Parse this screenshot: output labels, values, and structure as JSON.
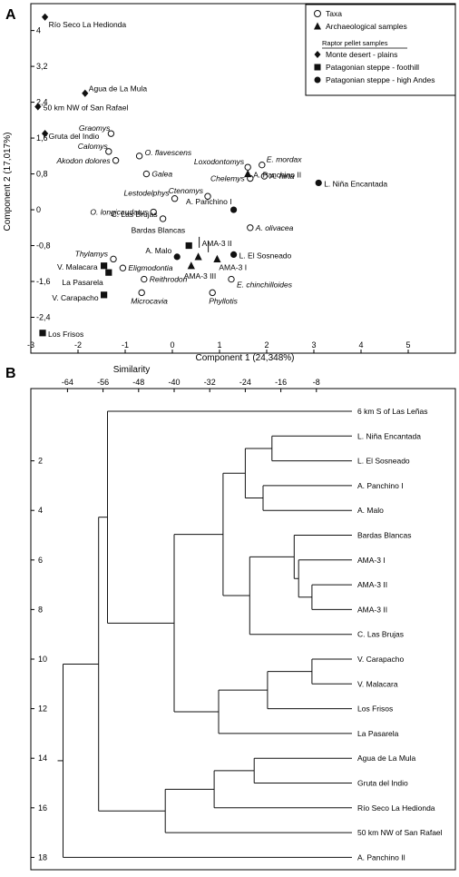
{
  "chart_data": [
    {
      "panel_label": "A",
      "type": "scatter",
      "xlabel": "Component 1 (24,348%)",
      "ylabel": "Component 2 (17,017%)",
      "xlim": [
        -3,
        6
      ],
      "ylim": [
        -3.2,
        4.6
      ],
      "x_ticks": [
        -3,
        -2,
        -1,
        0,
        1,
        2,
        3,
        4,
        5
      ],
      "y_ticks": [
        -2.4,
        -1.6,
        -0.8,
        0,
        0.8,
        1.6,
        2.4,
        3.2,
        4
      ],
      "x_tick_labels": [
        "-3",
        "-2",
        "-1",
        "0",
        "1",
        "2",
        "3",
        "4",
        "5"
      ],
      "y_tick_labels": [
        "-2,4",
        "-1,6",
        "-0,8",
        "0",
        "0,8",
        "1,6",
        "2,4",
        "3,2",
        "4"
      ],
      "legend": {
        "position": "top-right",
        "entries": [
          {
            "symbol": "open-circle",
            "label": "Taxa"
          },
          {
            "symbol": "triangle",
            "label": "Archaeological samples"
          },
          {
            "symbol": "none",
            "label": "Raptor pellet samples",
            "underline": true
          },
          {
            "symbol": "diamond",
            "label": "Monte desert - plains"
          },
          {
            "symbol": "square",
            "label": "Patagonian steppe - foothill"
          },
          {
            "symbol": "circle",
            "label": "Patagonian steppe - high Andes"
          }
        ]
      },
      "series": [
        {
          "name": "Taxa",
          "symbol": "open-circle",
          "points": [
            {
              "label": "Graomys",
              "italic": true,
              "x": -1.3,
              "y": 1.7
            },
            {
              "label": "Calomys",
              "italic": true,
              "x": -1.35,
              "y": 1.3
            },
            {
              "label": "O. flavescens",
              "italic": true,
              "x": -0.7,
              "y": 1.2
            },
            {
              "label": "Akodon dolores",
              "italic": true,
              "x": -1.2,
              "y": 1.1
            },
            {
              "label": "Galea",
              "italic": true,
              "x": -0.55,
              "y": 0.8
            },
            {
              "label": "Loxodontomys",
              "italic": true,
              "x": 1.6,
              "y": 0.95
            },
            {
              "label": "E. mordax",
              "italic": true,
              "x": 1.9,
              "y": 1.0
            },
            {
              "label": "Chelemys",
              "italic": true,
              "x": 1.65,
              "y": 0.7
            },
            {
              "label": "A. hirta",
              "italic": true,
              "x": 1.95,
              "y": 0.75
            },
            {
              "label": "Lestodelphys",
              "italic": true,
              "x": 0.05,
              "y": 0.25
            },
            {
              "label": "Ctenomys",
              "italic": true,
              "x": 0.75,
              "y": 0.3
            },
            {
              "label": "O. longicaudatus",
              "italic": true,
              "x": -0.4,
              "y": -0.05
            },
            {
              "label": "C. Las Brujas",
              "italic": false,
              "x": -0.2,
              "y": -0.2
            },
            {
              "label": "A. olivacea",
              "italic": true,
              "x": 1.65,
              "y": -0.4
            },
            {
              "label": "Thylamys",
              "italic": true,
              "x": -1.25,
              "y": -1.1
            },
            {
              "label": "Eligmodontia",
              "italic": true,
              "x": -1.05,
              "y": -1.3
            },
            {
              "label": "Reithrodon",
              "italic": true,
              "x": -0.6,
              "y": -1.55
            },
            {
              "label": "Microcavia",
              "italic": true,
              "x": -0.65,
              "y": -1.85
            },
            {
              "label": "E. chinchilloides",
              "italic": true,
              "x": 1.25,
              "y": -1.55
            },
            {
              "label": "Phyllotis",
              "italic": true,
              "x": 0.85,
              "y": -1.85
            }
          ]
        },
        {
          "name": "Archaeological samples",
          "symbol": "triangle",
          "points": [
            {
              "label": "AMA-3 II",
              "x": 0.55,
              "y": -1.05
            },
            {
              "label": "AMA-3 I",
              "x": 0.95,
              "y": -1.1
            },
            {
              "label": "AMA-3 III",
              "x": 0.4,
              "y": -1.25
            },
            {
              "label": "A. Panchino II",
              "x": 1.6,
              "y": 0.8
            }
          ]
        },
        {
          "name": "Monte desert - plains",
          "symbol": "diamond",
          "points": [
            {
              "label": "Río Seco La Hedionda",
              "x": -2.7,
              "y": 4.3
            },
            {
              "label": "Agua de La Mula",
              "x": -1.85,
              "y": 2.6
            },
            {
              "label": "50 km NW of San Rafael",
              "x": -2.85,
              "y": 2.3
            },
            {
              "label": "Gruta del Indio",
              "x": -2.7,
              "y": 1.7
            }
          ]
        },
        {
          "name": "Patagonian steppe - foothill",
          "symbol": "square",
          "points": [
            {
              "label": "Bardas Blancas",
              "x": 0.35,
              "y": -0.8
            },
            {
              "label": "V. Malacara",
              "x": -1.45,
              "y": -1.25
            },
            {
              "label": "La Pasarela",
              "x": -1.35,
              "y": -1.4
            },
            {
              "label": "V. Carapacho",
              "x": -1.45,
              "y": -1.9
            },
            {
              "label": "Los Frisos",
              "x": -2.75,
              "y": -2.75
            }
          ]
        },
        {
          "name": "Patagonian steppe - high Andes",
          "symbol": "circle",
          "points": [
            {
              "label": "6 km S of Las Leñas",
              "x": 5.85,
              "y": 2.7
            },
            {
              "label": "L. Niña Encantada",
              "x": 3.1,
              "y": 0.6
            },
            {
              "label": "A. Panchino I",
              "x": 1.3,
              "y": 0.0
            },
            {
              "label": "L. El Sosneado",
              "x": 1.3,
              "y": -1.0
            },
            {
              "label": "A. Malo",
              "x": 0.1,
              "y": -1.05
            }
          ]
        }
      ]
    },
    {
      "panel_label": "B",
      "type": "dendrogram",
      "xlabel": "Similarity",
      "x_ticks": [
        -64,
        -56,
        -48,
        -40,
        -32,
        -24,
        -16,
        -8
      ],
      "y_ticks": [
        2,
        4,
        6,
        8,
        10,
        12,
        14,
        16,
        18
      ],
      "xlim": [
        -70,
        0
      ],
      "leaves": [
        "6 km S of Las Leñas",
        "L. Niña Encantada",
        "L. El Sosneado",
        "A. Panchino I",
        "A. Malo",
        "Bardas Blancas",
        "AMA-3 I",
        "AMA-3 II",
        "AMA-3 II",
        "C. Las Brujas",
        "V. Carapacho",
        "V. Malacara",
        "Los Frisos",
        "La Pasarela",
        "Agua de La Mula",
        "Gruta del Indio",
        "Río Seco La Hedionda",
        "50 km NW of San Rafael",
        "A. Panchino  II"
      ],
      "merges": [
        {
          "a": "L7",
          "b": "L8",
          "similarity": -9
        },
        {
          "a": "L10",
          "b": "L11",
          "similarity": -9
        },
        {
          "a": "L6",
          "b": "N0",
          "similarity": -12
        },
        {
          "a": "L5",
          "b": "N2",
          "similarity": -13
        },
        {
          "a": "L1",
          "b": "L2",
          "similarity": -18
        },
        {
          "a": "L3",
          "b": "L4",
          "similarity": -20
        },
        {
          "a": "N1",
          "b": "L12",
          "similarity": -19
        },
        {
          "a": "N3",
          "b": "L9",
          "similarity": -23
        },
        {
          "a": "L14",
          "b": "L15",
          "similarity": -22
        },
        {
          "a": "N4",
          "b": "N5",
          "similarity": -24
        },
        {
          "a": "N9",
          "b": "N7",
          "similarity": -29
        },
        {
          "a": "N6",
          "b": "L13",
          "similarity": -30
        },
        {
          "a": "N8",
          "b": "L16",
          "similarity": -31
        },
        {
          "a": "N10",
          "b": "N11",
          "similarity": -40
        },
        {
          "a": "N12",
          "b": "L17",
          "similarity": -42
        },
        {
          "a": "L0",
          "b": "N13",
          "similarity": -55
        },
        {
          "a": "N15",
          "b": "N14",
          "similarity": -57
        },
        {
          "a": "N16",
          "b": "L18",
          "similarity": -65
        }
      ]
    }
  ]
}
